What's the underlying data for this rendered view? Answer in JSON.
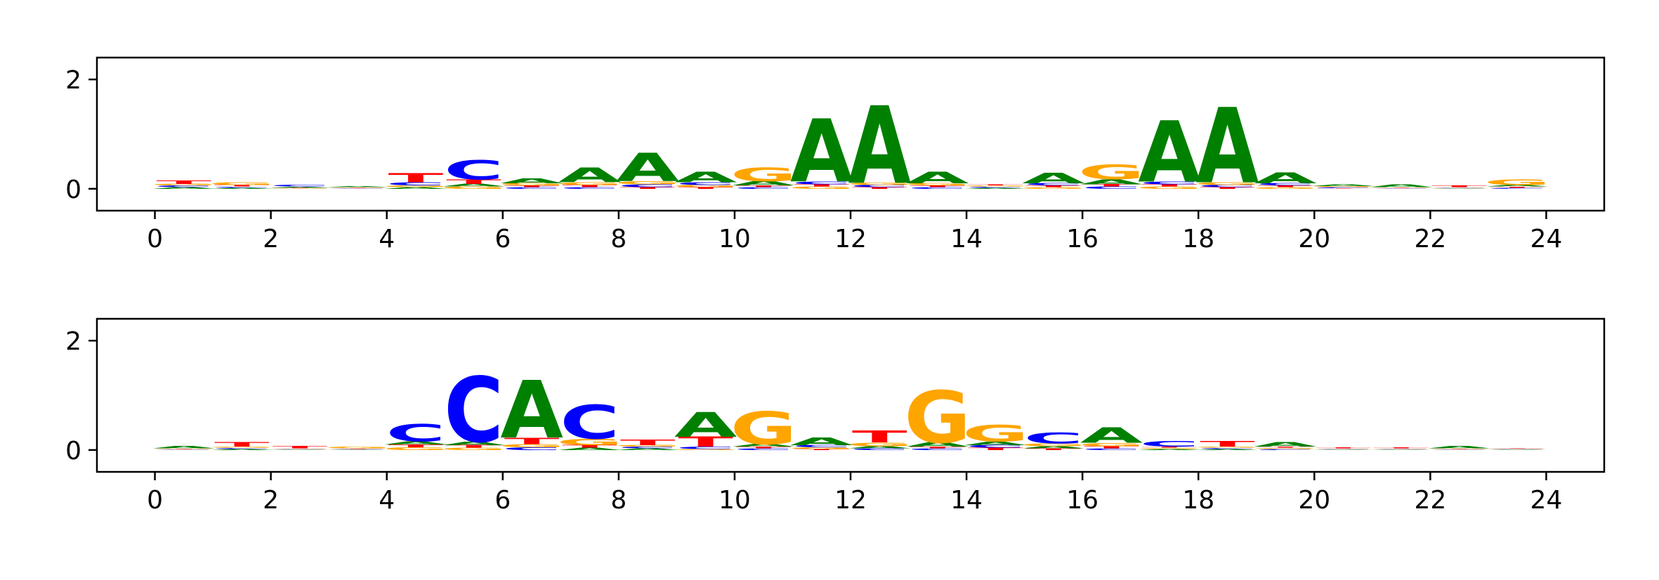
{
  "chart_data": [
    {
      "type": "sequence_logo",
      "xlim": [
        -1,
        25
      ],
      "ylim": [
        -0.4,
        2.4
      ],
      "xticks": [
        "0",
        "2",
        "4",
        "6",
        "8",
        "10",
        "12",
        "14",
        "16",
        "18",
        "20",
        "22",
        "24"
      ],
      "yticks": [
        "0",
        "2"
      ],
      "colors": {
        "A": "#008000",
        "C": "#0000ff",
        "G": "#ffa500",
        "T": "#ff0000"
      },
      "positions": [
        {
          "A": 0.03,
          "C": 0.03,
          "G": 0.03,
          "T": 0.07
        },
        {
          "A": 0.02,
          "C": 0.02,
          "G": 0.05,
          "T": 0.03
        },
        {
          "A": 0.02,
          "C": 0.03,
          "G": 0.01,
          "T": 0.01
        },
        {
          "A": 0.02,
          "C": 0.01,
          "G": 0.01,
          "T": 0.01
        },
        {
          "A": 0.03,
          "C": 0.06,
          "G": 0.03,
          "T": 0.17
        },
        {
          "A": 0.05,
          "C": 0.35,
          "G": 0.04,
          "T": 0.08
        },
        {
          "A": 0.09,
          "C": 0.03,
          "G": 0.04,
          "T": 0.03
        },
        {
          "A": 0.27,
          "C": 0.03,
          "G": 0.05,
          "T": 0.04
        },
        {
          "A": 0.52,
          "C": 0.05,
          "G": 0.06,
          "T": 0.03
        },
        {
          "A": 0.19,
          "C": 0.05,
          "G": 0.04,
          "T": 0.03
        },
        {
          "A": 0.08,
          "C": 0.03,
          "G": 0.25,
          "T": 0.03
        },
        {
          "A": 1.15,
          "C": 0.05,
          "G": 0.04,
          "T": 0.04
        },
        {
          "A": 1.42,
          "C": 0.04,
          "G": 0.04,
          "T": 0.03
        },
        {
          "A": 0.21,
          "C": 0.03,
          "G": 0.04,
          "T": 0.03
        },
        {
          "A": 0.02,
          "C": 0.02,
          "G": 0.02,
          "T": 0.02
        },
        {
          "A": 0.19,
          "C": 0.04,
          "G": 0.03,
          "T": 0.03
        },
        {
          "A": 0.09,
          "C": 0.04,
          "G": 0.27,
          "T": 0.04
        },
        {
          "A": 1.12,
          "C": 0.05,
          "G": 0.04,
          "T": 0.04
        },
        {
          "A": 1.38,
          "C": 0.04,
          "G": 0.05,
          "T": 0.03
        },
        {
          "A": 0.2,
          "C": 0.04,
          "G": 0.03,
          "T": 0.03
        },
        {
          "A": 0.03,
          "C": 0.02,
          "G": 0.02,
          "T": 0.01
        },
        {
          "A": 0.05,
          "C": 0.01,
          "G": 0.01,
          "T": 0.01
        },
        {
          "A": 0.01,
          "C": 0.01,
          "G": 0.01,
          "T": 0.03
        },
        {
          "A": 0.03,
          "C": 0.02,
          "G": 0.1,
          "T": 0.02
        }
      ]
    },
    {
      "type": "sequence_logo",
      "xlim": [
        -1,
        25
      ],
      "ylim": [
        -0.4,
        2.4
      ],
      "xticks": [
        "0",
        "2",
        "4",
        "6",
        "8",
        "10",
        "12",
        "14",
        "16",
        "18",
        "20",
        "22",
        "24"
      ],
      "yticks": [
        "0",
        "2"
      ],
      "colors": {
        "A": "#008000",
        "C": "#0000ff",
        "G": "#ffa500",
        "T": "#ff0000"
      },
      "positions": [
        {
          "A": 0.04,
          "C": 0.01,
          "G": 0.01,
          "T": 0.01
        },
        {
          "A": 0.02,
          "C": 0.02,
          "G": 0.02,
          "T": 0.08
        },
        {
          "A": 0.01,
          "C": 0.01,
          "G": 0.01,
          "T": 0.04
        },
        {
          "A": 0.01,
          "C": 0.01,
          "G": 0.03,
          "T": 0.01
        },
        {
          "A": 0.06,
          "C": 0.32,
          "G": 0.05,
          "T": 0.05
        },
        {
          "A": 0.07,
          "C": 1.2,
          "G": 0.04,
          "T": 0.05
        },
        {
          "A": 1.05,
          "C": 0.05,
          "G": 0.06,
          "T": 0.12
        },
        {
          "A": 0.04,
          "C": 0.62,
          "G": 0.12,
          "T": 0.05
        },
        {
          "A": 0.03,
          "C": 0.03,
          "G": 0.03,
          "T": 0.1
        },
        {
          "A": 0.45,
          "C": 0.04,
          "G": 0.02,
          "T": 0.18
        },
        {
          "A": 0.05,
          "C": 0.03,
          "G": 0.6,
          "T": 0.03
        },
        {
          "A": 0.14,
          "C": 0.04,
          "G": 0.03,
          "T": 0.02
        },
        {
          "A": 0.04,
          "C": 0.03,
          "G": 0.07,
          "T": 0.22
        },
        {
          "A": 0.08,
          "C": 0.03,
          "G": 0.95,
          "T": 0.03
        },
        {
          "A": 0.07,
          "C": 0.05,
          "G": 0.3,
          "T": 0.04
        },
        {
          "A": 0.04,
          "C": 0.2,
          "G": 0.05,
          "T": 0.03
        },
        {
          "A": 0.28,
          "C": 0.03,
          "G": 0.06,
          "T": 0.04
        },
        {
          "A": 0.02,
          "C": 0.1,
          "G": 0.02,
          "T": 0.02
        },
        {
          "A": 0.02,
          "C": 0.02,
          "G": 0.02,
          "T": 0.1
        },
        {
          "A": 0.08,
          "C": 0.02,
          "G": 0.02,
          "T": 0.02
        },
        {
          "A": 0.01,
          "C": 0.01,
          "G": 0.01,
          "T": 0.02
        },
        {
          "A": 0.01,
          "C": 0.01,
          "G": 0.01,
          "T": 0.02
        },
        {
          "A": 0.04,
          "C": 0.01,
          "G": 0.01,
          "T": 0.01
        },
        {
          "A": 0.01,
          "C": 0.01,
          "G": 0.01,
          "T": 0.01
        }
      ]
    }
  ]
}
